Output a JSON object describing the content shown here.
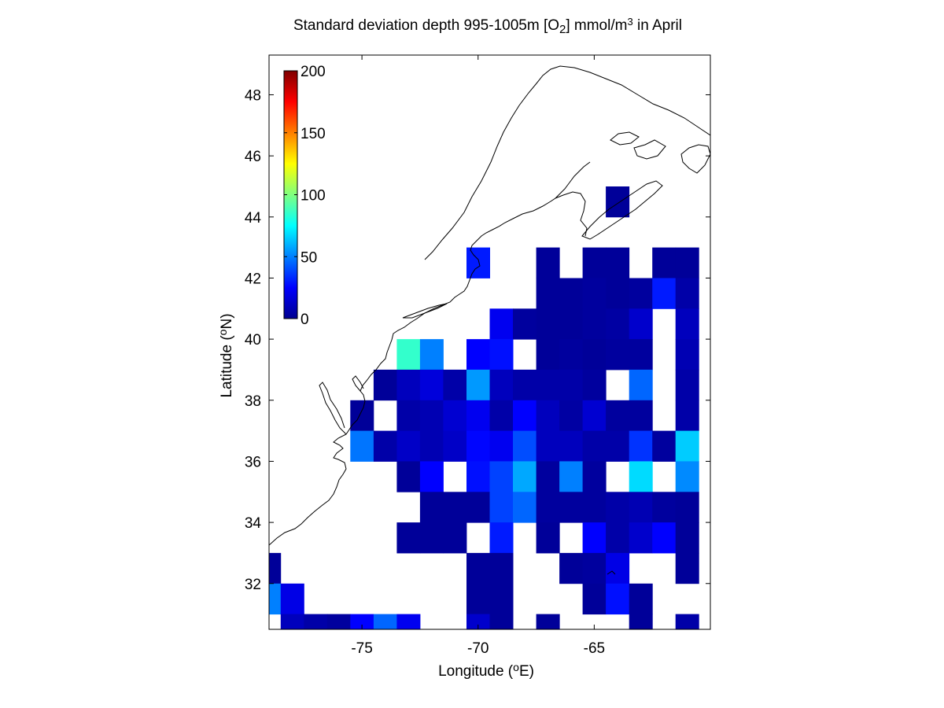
{
  "figure": {
    "title": {
      "prefix": "Standard deviation depth 995-1005m [O",
      "sub": "2",
      "mid": "] mmol/m",
      "sup": "3",
      "suffix": " in April"
    },
    "xlabel": {
      "prefix": "Longitude (",
      "sup": "o",
      "suffix": "E)"
    },
    "ylabel": {
      "prefix": "Latitude (",
      "sup": "o",
      "suffix": "N)"
    }
  },
  "colorbar": {
    "range": [
      0,
      200
    ],
    "ticks": [
      "0",
      "50",
      "100",
      "150",
      "200"
    ],
    "colormap": "jet"
  },
  "map_area": {
    "region": "US East Coast / Northwest Atlantic",
    "coastline_color": "#000000"
  },
  "chart_data": {
    "type": "heatmap",
    "xlim": [
      -79,
      -60
    ],
    "ylim": [
      30.5,
      49.3
    ],
    "xticks": [
      "-75",
      "-70",
      "-65"
    ],
    "xtick_values": [
      -75,
      -70,
      -65
    ],
    "yticks": [
      "32",
      "34",
      "36",
      "38",
      "40",
      "42",
      "44",
      "46",
      "48"
    ],
    "ytick_values": [
      32,
      34,
      36,
      38,
      40,
      42,
      44,
      46,
      48
    ],
    "cell_size_deg": 1,
    "color_range": [
      0,
      200
    ],
    "cells": [
      {
        "lon": -64,
        "lat": 44.5,
        "v": 5
      },
      {
        "lon": -70,
        "lat": 42.5,
        "v": 30
      },
      {
        "lon": -67,
        "lat": 42.5,
        "v": 5
      },
      {
        "lon": -65,
        "lat": 42.5,
        "v": 5
      },
      {
        "lon": -64,
        "lat": 42.5,
        "v": 5
      },
      {
        "lon": -62,
        "lat": 42.5,
        "v": 5
      },
      {
        "lon": -61,
        "lat": 42.5,
        "v": 5
      },
      {
        "lon": -67,
        "lat": 41.5,
        "v": 5
      },
      {
        "lon": -66,
        "lat": 41.5,
        "v": 5
      },
      {
        "lon": -65,
        "lat": 41.5,
        "v": 6
      },
      {
        "lon": -64,
        "lat": 41.5,
        "v": 5
      },
      {
        "lon": -63,
        "lat": 41.5,
        "v": 6
      },
      {
        "lon": -62,
        "lat": 41.5,
        "v": 30
      },
      {
        "lon": -61,
        "lat": 41.5,
        "v": 8
      },
      {
        "lon": -69,
        "lat": 40.5,
        "v": 22
      },
      {
        "lon": -68,
        "lat": 40.5,
        "v": 6
      },
      {
        "lon": -67,
        "lat": 40.5,
        "v": 5
      },
      {
        "lon": -66,
        "lat": 40.5,
        "v": 5
      },
      {
        "lon": -65,
        "lat": 40.5,
        "v": 6
      },
      {
        "lon": -64,
        "lat": 40.5,
        "v": 7
      },
      {
        "lon": -63,
        "lat": 40.5,
        "v": 15
      },
      {
        "lon": -61,
        "lat": 40.5,
        "v": 12
      },
      {
        "lon": -73,
        "lat": 39.5,
        "v": 85
      },
      {
        "lon": -72,
        "lat": 39.5,
        "v": 50
      },
      {
        "lon": -70,
        "lat": 39.5,
        "v": 25
      },
      {
        "lon": -69,
        "lat": 39.5,
        "v": 28
      },
      {
        "lon": -67,
        "lat": 39.5,
        "v": 5
      },
      {
        "lon": -66,
        "lat": 39.5,
        "v": 6
      },
      {
        "lon": -65,
        "lat": 39.5,
        "v": 5
      },
      {
        "lon": -64,
        "lat": 39.5,
        "v": 6
      },
      {
        "lon": -63,
        "lat": 39.5,
        "v": 6
      },
      {
        "lon": -61,
        "lat": 39.5,
        "v": 10
      },
      {
        "lon": -74,
        "lat": 38.5,
        "v": 5
      },
      {
        "lon": -73,
        "lat": 38.5,
        "v": 12
      },
      {
        "lon": -72,
        "lat": 38.5,
        "v": 18
      },
      {
        "lon": -71,
        "lat": 38.5,
        "v": 8
      },
      {
        "lon": -70,
        "lat": 38.5,
        "v": 55
      },
      {
        "lon": -69,
        "lat": 38.5,
        "v": 12
      },
      {
        "lon": -68,
        "lat": 38.5,
        "v": 8
      },
      {
        "lon": -67,
        "lat": 38.5,
        "v": 8
      },
      {
        "lon": -66,
        "lat": 38.5,
        "v": 8
      },
      {
        "lon": -65,
        "lat": 38.5,
        "v": 6
      },
      {
        "lon": -63,
        "lat": 38.5,
        "v": 45
      },
      {
        "lon": -61,
        "lat": 38.5,
        "v": 8
      },
      {
        "lon": -75,
        "lat": 37.5,
        "v": 5
      },
      {
        "lon": -73,
        "lat": 37.5,
        "v": 8
      },
      {
        "lon": -72,
        "lat": 37.5,
        "v": 10
      },
      {
        "lon": -71,
        "lat": 37.5,
        "v": 16
      },
      {
        "lon": -70,
        "lat": 37.5,
        "v": 22
      },
      {
        "lon": -69,
        "lat": 37.5,
        "v": 8
      },
      {
        "lon": -68,
        "lat": 37.5,
        "v": 25
      },
      {
        "lon": -67,
        "lat": 37.5,
        "v": 12
      },
      {
        "lon": -66,
        "lat": 37.5,
        "v": 7
      },
      {
        "lon": -65,
        "lat": 37.5,
        "v": 16
      },
      {
        "lon": -64,
        "lat": 37.5,
        "v": 6
      },
      {
        "lon": -63,
        "lat": 37.5,
        "v": 6
      },
      {
        "lon": -61,
        "lat": 37.5,
        "v": 8
      },
      {
        "lon": -75,
        "lat": 36.5,
        "v": 48
      },
      {
        "lon": -74,
        "lat": 36.5,
        "v": 8
      },
      {
        "lon": -73,
        "lat": 36.5,
        "v": 14
      },
      {
        "lon": -72,
        "lat": 36.5,
        "v": 10
      },
      {
        "lon": -71,
        "lat": 36.5,
        "v": 14
      },
      {
        "lon": -70,
        "lat": 36.5,
        "v": 26
      },
      {
        "lon": -69,
        "lat": 36.5,
        "v": 22
      },
      {
        "lon": -68,
        "lat": 36.5,
        "v": 40
      },
      {
        "lon": -67,
        "lat": 36.5,
        "v": 12
      },
      {
        "lon": -66,
        "lat": 36.5,
        "v": 12
      },
      {
        "lon": -65,
        "lat": 36.5,
        "v": 8
      },
      {
        "lon": -64,
        "lat": 36.5,
        "v": 8
      },
      {
        "lon": -63,
        "lat": 36.5,
        "v": 35
      },
      {
        "lon": -62,
        "lat": 36.5,
        "v": 6
      },
      {
        "lon": -61,
        "lat": 36.5,
        "v": 65
      },
      {
        "lon": -73,
        "lat": 35.5,
        "v": 5
      },
      {
        "lon": -72,
        "lat": 35.5,
        "v": 25
      },
      {
        "lon": -70,
        "lat": 35.5,
        "v": 28
      },
      {
        "lon": -69,
        "lat": 35.5,
        "v": 38
      },
      {
        "lon": -68,
        "lat": 35.5,
        "v": 58
      },
      {
        "lon": -67,
        "lat": 35.5,
        "v": 6
      },
      {
        "lon": -66,
        "lat": 35.5,
        "v": 50
      },
      {
        "lon": -65,
        "lat": 35.5,
        "v": 6
      },
      {
        "lon": -63,
        "lat": 35.5,
        "v": 68
      },
      {
        "lon": -61,
        "lat": 35.5,
        "v": 52
      },
      {
        "lon": -72,
        "lat": 34.5,
        "v": 5
      },
      {
        "lon": -71,
        "lat": 34.5,
        "v": 5
      },
      {
        "lon": -70,
        "lat": 34.5,
        "v": 5
      },
      {
        "lon": -69,
        "lat": 34.5,
        "v": 38
      },
      {
        "lon": -68,
        "lat": 34.5,
        "v": 45
      },
      {
        "lon": -67,
        "lat": 34.5,
        "v": 6
      },
      {
        "lon": -66,
        "lat": 34.5,
        "v": 6
      },
      {
        "lon": -65,
        "lat": 34.5,
        "v": 6
      },
      {
        "lon": -64,
        "lat": 34.5,
        "v": 8
      },
      {
        "lon": -63,
        "lat": 34.5,
        "v": 10
      },
      {
        "lon": -62,
        "lat": 34.5,
        "v": 6
      },
      {
        "lon": -61,
        "lat": 34.5,
        "v": 5
      },
      {
        "lon": -73,
        "lat": 33.5,
        "v": 5
      },
      {
        "lon": -72,
        "lat": 33.5,
        "v": 5
      },
      {
        "lon": -71,
        "lat": 33.5,
        "v": 5
      },
      {
        "lon": -69,
        "lat": 33.5,
        "v": 30
      },
      {
        "lon": -67,
        "lat": 33.5,
        "v": 5
      },
      {
        "lon": -65,
        "lat": 33.5,
        "v": 25
      },
      {
        "lon": -64,
        "lat": 33.5,
        "v": 8
      },
      {
        "lon": -63,
        "lat": 33.5,
        "v": 15
      },
      {
        "lon": -62,
        "lat": 33.5,
        "v": 25
      },
      {
        "lon": -61,
        "lat": 33.5,
        "v": 5
      },
      {
        "lon": -79,
        "lat": 32.5,
        "v": 5
      },
      {
        "lon": -70,
        "lat": 32.5,
        "v": 5
      },
      {
        "lon": -69,
        "lat": 32.5,
        "v": 5
      },
      {
        "lon": -66,
        "lat": 32.5,
        "v": 5
      },
      {
        "lon": -65,
        "lat": 32.5,
        "v": 6
      },
      {
        "lon": -64,
        "lat": 32.5,
        "v": 20
      },
      {
        "lon": -61,
        "lat": 32.5,
        "v": 5
      },
      {
        "lon": -79,
        "lat": 31.5,
        "v": 50
      },
      {
        "lon": -78,
        "lat": 31.5,
        "v": 20
      },
      {
        "lon": -70,
        "lat": 31.5,
        "v": 5
      },
      {
        "lon": -69,
        "lat": 31.5,
        "v": 5
      },
      {
        "lon": -65,
        "lat": 31.5,
        "v": 5
      },
      {
        "lon": -64,
        "lat": 31.5,
        "v": 28
      },
      {
        "lon": -63,
        "lat": 31.5,
        "v": 5
      },
      {
        "lon": -78,
        "lat": 30.75,
        "v": 12,
        "h": 0.5
      },
      {
        "lon": -77,
        "lat": 30.75,
        "v": 8,
        "h": 0.5
      },
      {
        "lon": -76,
        "lat": 30.75,
        "v": 6,
        "h": 0.5
      },
      {
        "lon": -75,
        "lat": 30.75,
        "v": 25,
        "h": 0.5
      },
      {
        "lon": -74,
        "lat": 30.75,
        "v": 45,
        "h": 0.5
      },
      {
        "lon": -73,
        "lat": 30.75,
        "v": 22,
        "h": 0.5
      },
      {
        "lon": -70,
        "lat": 30.75,
        "v": 15,
        "h": 0.5
      },
      {
        "lon": -69,
        "lat": 30.75,
        "v": 5,
        "h": 0.5
      },
      {
        "lon": -67,
        "lat": 30.75,
        "v": 5,
        "h": 0.5
      },
      {
        "lon": -63,
        "lat": 30.75,
        "v": 5,
        "h": 0.5
      },
      {
        "lon": -61,
        "lat": 30.75,
        "v": 8,
        "h": 0.5
      }
    ]
  }
}
